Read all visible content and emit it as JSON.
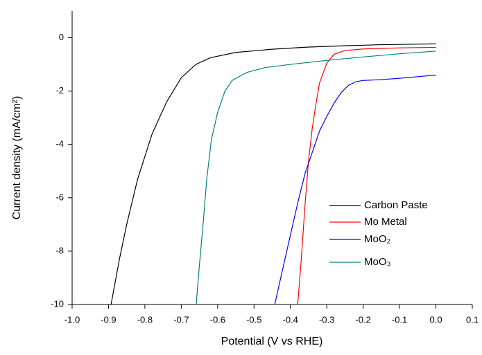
{
  "chart_data": {
    "type": "line",
    "xlabel": "Potential (V vs RHE)",
    "ylabel": "Current density (mA/cm²)",
    "xlim": [
      -1.0,
      0.1
    ],
    "ylim": [
      -10,
      1
    ],
    "xticks": [
      {
        "value": -1.0,
        "label": "-1.0"
      },
      -0.9,
      -0.8,
      -0.7,
      -0.6,
      -0.5,
      -0.4,
      -0.3,
      -0.2,
      -0.1,
      {
        "value": 0,
        "label": "0.0"
      },
      0.1
    ],
    "yticks": [
      -10,
      -8,
      -6,
      -4,
      -2,
      0
    ],
    "legend_position": "lower right",
    "series": [
      {
        "name": "Carbon Paste",
        "color": "#000000",
        "x": [
          -0.893,
          -0.87,
          -0.85,
          -0.82,
          -0.78,
          -0.74,
          -0.7,
          -0.66,
          -0.62,
          -0.55,
          -0.45,
          -0.35,
          -0.25,
          -0.15,
          -0.05,
          0.0
        ],
        "values": [
          -10,
          -8.3,
          -7.0,
          -5.3,
          -3.6,
          -2.4,
          -1.5,
          -1.0,
          -0.75,
          -0.55,
          -0.43,
          -0.35,
          -0.3,
          -0.26,
          -0.24,
          -0.23
        ]
      },
      {
        "name": "Mo Metal",
        "color": "#ff0000",
        "x": [
          -0.38,
          -0.37,
          -0.36,
          -0.35,
          -0.34,
          -0.33,
          -0.32,
          -0.3,
          -0.28,
          -0.25,
          -0.2,
          -0.1,
          0.0
        ],
        "values": [
          -10,
          -8.3,
          -6.3,
          -4.6,
          -3.4,
          -2.5,
          -1.7,
          -0.95,
          -0.62,
          -0.48,
          -0.42,
          -0.38,
          -0.36
        ]
      },
      {
        "name": "MoO₂",
        "color": "#0000ff",
        "x": [
          -0.443,
          -0.42,
          -0.4,
          -0.38,
          -0.36,
          -0.34,
          -0.32,
          -0.3,
          -0.28,
          -0.26,
          -0.24,
          -0.22,
          -0.2,
          -0.15,
          -0.1,
          -0.05,
          0.0
        ],
        "values": [
          -10,
          -8.6,
          -7.4,
          -6.2,
          -5.1,
          -4.3,
          -3.5,
          -2.95,
          -2.45,
          -2.05,
          -1.78,
          -1.65,
          -1.6,
          -1.57,
          -1.52,
          -1.46,
          -1.4
        ]
      },
      {
        "name": "MoO₃",
        "color": "#008080",
        "x": [
          -0.659,
          -0.65,
          -0.64,
          -0.63,
          -0.617,
          -0.6,
          -0.58,
          -0.56,
          -0.52,
          -0.47,
          -0.4,
          -0.3,
          -0.2,
          -0.1,
          0.0
        ],
        "values": [
          -10,
          -8.5,
          -7.0,
          -5.3,
          -3.8,
          -2.8,
          -2.0,
          -1.6,
          -1.3,
          -1.12,
          -1.0,
          -0.85,
          -0.72,
          -0.6,
          -0.5
        ]
      }
    ]
  }
}
